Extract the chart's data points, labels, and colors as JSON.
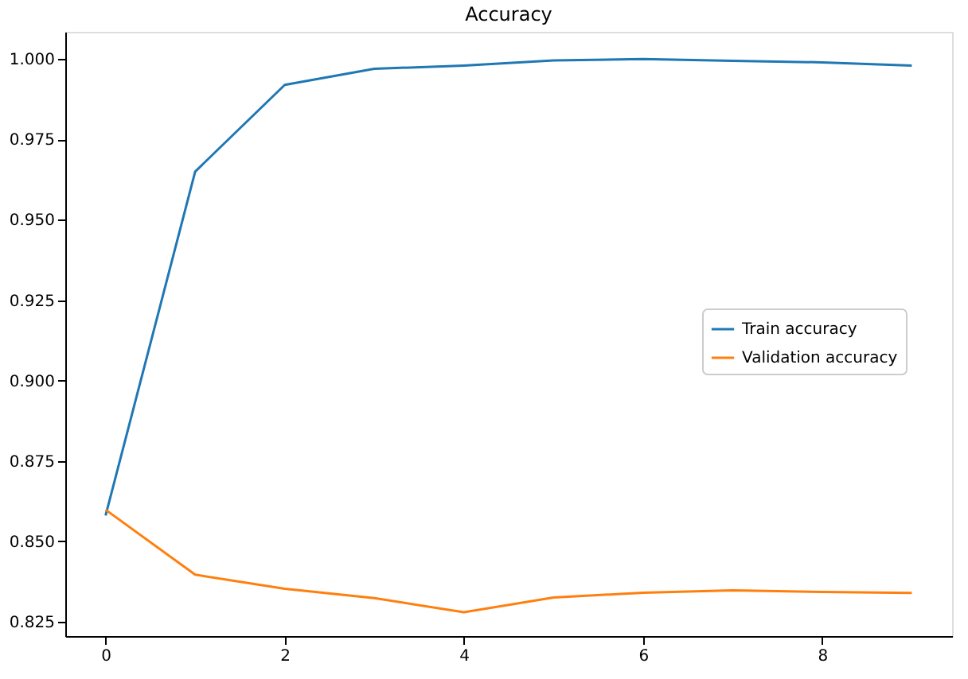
{
  "chart_data": {
    "type": "line",
    "title": "Accuracy",
    "x": [
      0,
      1,
      2,
      3,
      4,
      5,
      6,
      7,
      8,
      9
    ],
    "series": [
      {
        "name": "Train accuracy",
        "color": "#1f77b4",
        "values": [
          0.858,
          0.965,
          0.992,
          0.997,
          0.998,
          0.9996,
          1.0,
          0.9995,
          0.999,
          0.998
        ]
      },
      {
        "name": "Validation accuracy",
        "color": "#ff7f0e",
        "values": [
          0.8598,
          0.8396,
          0.8352,
          0.8323,
          0.8279,
          0.8325,
          0.834,
          0.8347,
          0.8342,
          0.8339
        ]
      }
    ],
    "xlim": [
      -0.45,
      9.45
    ],
    "xticks": [
      0,
      2,
      4,
      6,
      8
    ],
    "ylim": [
      0.8205,
      1.0085
    ],
    "yticks": [
      {
        "value": 0.825,
        "label": "0.825"
      },
      {
        "value": 0.85,
        "label": "0.850"
      },
      {
        "value": 0.875,
        "label": "0.875"
      },
      {
        "value": 0.9,
        "label": "0.900"
      },
      {
        "value": 0.925,
        "label": "0.925"
      },
      {
        "value": 0.95,
        "label": "0.950"
      },
      {
        "value": 0.975,
        "label": "0.975"
      },
      {
        "value": 1.0,
        "label": "1.000"
      }
    ],
    "legend": "right",
    "grid": false,
    "marker": "none",
    "line_style": "solid"
  }
}
